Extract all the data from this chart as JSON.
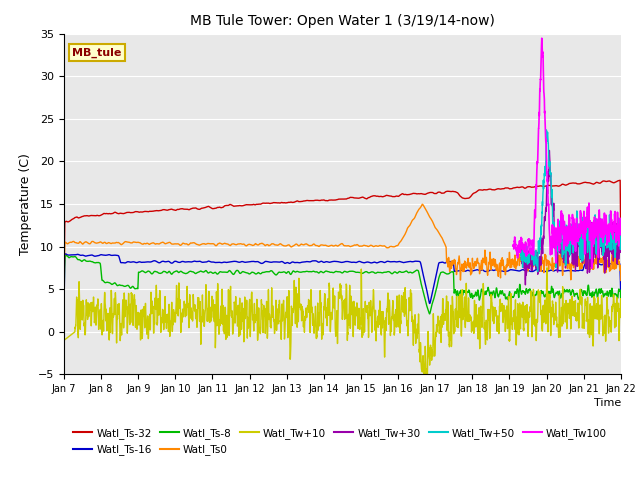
{
  "title": "MB Tule Tower: Open Water 1 (3/19/14-now)",
  "ylabel": "Temperature (C)",
  "xlabel": "Time",
  "annotation": "MB_tule",
  "ylim": [
    -5,
    35
  ],
  "yticks": [
    -5,
    0,
    5,
    10,
    15,
    20,
    25,
    30,
    35
  ],
  "xtick_labels": [
    "Jan 7",
    "Jan 8",
    "Jan 9",
    "Jan 10",
    "Jan 11",
    "Jan 12",
    "Jan 13",
    "Jan 14",
    "Jan 15",
    "Jan 16",
    "Jan 17",
    "Jan 18",
    "Jan 19",
    "Jan 20",
    "Jan 21",
    "Jan 22"
  ],
  "bg_color": "#e8e8e8",
  "series": {
    "Watl_Ts-32": {
      "color": "#cc0000",
      "lw": 1.0
    },
    "Watl_Ts-16": {
      "color": "#0000cc",
      "lw": 1.0
    },
    "Watl_Ts-8": {
      "color": "#00bb00",
      "lw": 1.0
    },
    "Watl_Ts0": {
      "color": "#ff8800",
      "lw": 1.0
    },
    "Watl_Tw+10": {
      "color": "#cccc00",
      "lw": 1.0
    },
    "Watl_Tw+30": {
      "color": "#9900aa",
      "lw": 1.0
    },
    "Watl_Tw+50": {
      "color": "#00cccc",
      "lw": 1.0
    },
    "Watl_Tw100": {
      "color": "#ff00ff",
      "lw": 1.2
    }
  }
}
